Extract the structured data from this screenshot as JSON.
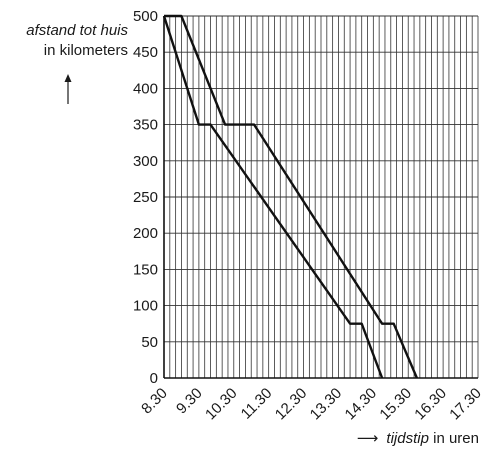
{
  "chart_data": {
    "type": "line",
    "ylabel_italic": "afstand tot huis",
    "ylabel_rest": "in kilometers",
    "xlabel_italic": "tijdstip",
    "xlabel_rest": "in uren",
    "x_ticks": [
      "8.30",
      "9.30",
      "10.30",
      "11.30",
      "12.30",
      "13.30",
      "14.30",
      "15.30",
      "16.30",
      "17.30"
    ],
    "y_ticks": [
      0,
      50,
      100,
      150,
      200,
      250,
      300,
      350,
      400,
      450,
      500
    ],
    "xlim": [
      "8.30",
      "17.30"
    ],
    "ylim": [
      0,
      500
    ],
    "grid": true,
    "series": [
      {
        "points": [
          {
            "x": "8.30",
            "y": 500
          },
          {
            "x": "9.30",
            "y": 350
          },
          {
            "x": "9.50",
            "y": 350
          },
          {
            "x": "13.50",
            "y": 75
          },
          {
            "x": "14.10",
            "y": 75
          },
          {
            "x": "14.45",
            "y": 0
          }
        ]
      },
      {
        "points": [
          {
            "x": "8.30",
            "y": 500
          },
          {
            "x": "9.00",
            "y": 500
          },
          {
            "x": "10.15",
            "y": 350
          },
          {
            "x": "11.05",
            "y": 350
          },
          {
            "x": "14.45",
            "y": 75
          },
          {
            "x": "15.05",
            "y": 75
          },
          {
            "x": "15.45",
            "y": 0
          }
        ]
      }
    ]
  }
}
